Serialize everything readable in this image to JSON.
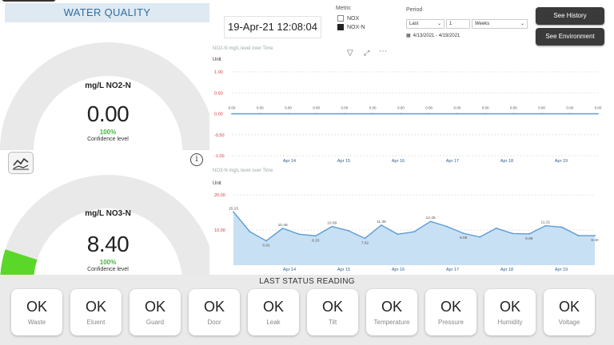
{
  "header": {
    "title": "WATER QUALITY",
    "datetime": "19-Apr-21 12:08:04"
  },
  "metric": {
    "label": "Metric",
    "options": [
      {
        "label": "NOX",
        "checked": false
      },
      {
        "label": "NOX-N",
        "checked": true
      }
    ]
  },
  "period": {
    "label": "Period",
    "mode": "Last",
    "count": "1",
    "unit": "Weeks",
    "range": "4/13/2021 - 4/19/2021"
  },
  "buttons": {
    "history": "See History",
    "environment": "See Environment"
  },
  "gauges": [
    {
      "label": "mg/L NO2-N",
      "value": "0.00",
      "percent": "100%",
      "confidence": "Confidence level",
      "fill_fraction": 0.0
    },
    {
      "label": "mg/L NO3-N",
      "value": "8.40",
      "percent": "100%",
      "confidence": "Confidence level",
      "fill_fraction": 0.1
    }
  ],
  "colors": {
    "gauge_track": "#e9e9e9",
    "gauge_fill": "#5bd72a",
    "accent_blue": "#5b9bd5",
    "area_fill": "#c8e0f4",
    "ok_green": "#3eb83e"
  },
  "chart_data": [
    {
      "type": "line",
      "title": "NO2-N mg/L level over Time",
      "ylabel": "Unit",
      "ylim": [
        -1,
        1
      ],
      "yticks": [
        "1.00",
        "0.50",
        "0.00",
        "-0.50",
        "-1.00"
      ],
      "xtick_labels": [
        "Apr 14",
        "Apr 15",
        "Apr 16",
        "Apr 17",
        "Apr 18",
        "Apr 19"
      ],
      "series": [
        {
          "values": [
            0,
            0,
            0,
            0,
            0,
            0,
            0,
            0,
            0,
            0,
            0,
            0,
            0,
            0
          ]
        }
      ],
      "data_labels": [
        "0.00",
        "0.00",
        "0.00",
        "0.00",
        "0.00",
        "0.00",
        "0.00",
        "0.00",
        "0.00",
        "0.00",
        "0.00",
        "0.00",
        "0.00",
        "0.00"
      ]
    },
    {
      "type": "area",
      "title": "NO3-N mg/L level over Time",
      "ylabel": "Unit",
      "ylim": [
        0,
        20
      ],
      "yticks": [
        "20.00",
        "10.00"
      ],
      "xtick_labels": [
        "Apr 14",
        "Apr 15",
        "Apr 16",
        "Apr 17",
        "Apr 18",
        "Apr 19"
      ],
      "series": [
        {
          "values": [
            15.15,
            9.5,
            6.91,
            10.48,
            8.8,
            8.33,
            10.99,
            9.8,
            7.62,
            11.38,
            8.8,
            9.5,
            12.45,
            11.0,
            9.06,
            8.0,
            10.5,
            9.0,
            8.88,
            11.21,
            10.8,
            8.4,
            8.4
          ]
        }
      ],
      "labeled_points": [
        {
          "index": 0,
          "label": "15.15"
        },
        {
          "index": 2,
          "label": "6.91"
        },
        {
          "index": 3,
          "label": "10.48"
        },
        {
          "index": 5,
          "label": "8.33"
        },
        {
          "index": 6,
          "label": "10.99"
        },
        {
          "index": 8,
          "label": "7.62"
        },
        {
          "index": 9,
          "label": "11.38"
        },
        {
          "index": 12,
          "label": "12.45"
        },
        {
          "index": 14,
          "label": "9.06"
        },
        {
          "index": 18,
          "label": "8.88"
        },
        {
          "index": 19,
          "label": "11.21"
        },
        {
          "index": 22,
          "label": "8.40"
        }
      ]
    }
  ],
  "toolbar_icons": [
    "filter-icon",
    "expand-icon",
    "more-icon"
  ],
  "status": {
    "title": "LAST STATUS READING",
    "items": [
      {
        "value": "OK",
        "name": "Waste"
      },
      {
        "value": "OK",
        "name": "Eluent"
      },
      {
        "value": "OK",
        "name": "Guard"
      },
      {
        "value": "OK",
        "name": "Door"
      },
      {
        "value": "OK",
        "name": "Leak"
      },
      {
        "value": "OK",
        "name": "Tilt"
      },
      {
        "value": "OK",
        "name": "Temperature"
      },
      {
        "value": "OK",
        "name": "Pressure"
      },
      {
        "value": "OK",
        "name": "Humidity"
      },
      {
        "value": "OK",
        "name": "Voltage"
      }
    ]
  }
}
